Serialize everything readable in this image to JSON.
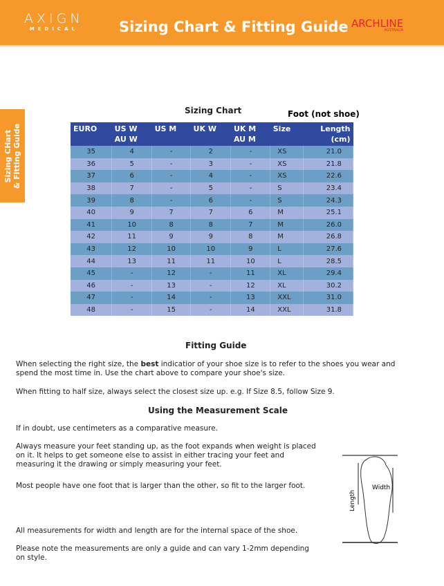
{
  "header": {
    "brand": "AXIGN",
    "brand_sub": "MEDICAL",
    "title": "Sizing Chart & Fitting Guide",
    "partner": "ARCHLINE",
    "partner_sub": "AUSTRALIA"
  },
  "side_tab": {
    "line1": "Sizing CHart",
    "line2": "& Fitting Guide"
  },
  "chart": {
    "title": "Sizing Chart",
    "note": "Foot (not shoe)",
    "headers": [
      "EURO",
      "US W\nAU W",
      "US M",
      "UK W",
      "UK M\nAU M",
      "Size",
      "Length\n(cm)"
    ],
    "rows": [
      [
        "35",
        "4",
        "-",
        "2",
        "-",
        "XS",
        "21.0"
      ],
      [
        "36",
        "5",
        "-",
        "3",
        "-",
        "XS",
        "21.8"
      ],
      [
        "37",
        "6",
        "-",
        "4",
        "-",
        "XS",
        "22.6"
      ],
      [
        "38",
        "7",
        "-",
        "5",
        "-",
        "S",
        "23.4"
      ],
      [
        "39",
        "8",
        "-",
        "6",
        "-",
        "S",
        "24.3"
      ],
      [
        "40",
        "9",
        "7",
        "7",
        "6",
        "M",
        "25.1"
      ],
      [
        "41",
        "10",
        "8",
        "8",
        "7",
        "M",
        "26.0"
      ],
      [
        "42",
        "11",
        "9",
        "9",
        "8",
        "M",
        "26.8"
      ],
      [
        "43",
        "12",
        "10",
        "10",
        "9",
        "L",
        "27.6"
      ],
      [
        "44",
        "13",
        "11",
        "11",
        "10",
        "L",
        "28.5"
      ],
      [
        "45",
        "-",
        "12",
        "-",
        "11",
        "XL",
        "29.4"
      ],
      [
        "46",
        "-",
        "13",
        "-",
        "12",
        "XL",
        "30.2"
      ],
      [
        "47",
        "-",
        "14",
        "-",
        "13",
        "XXL",
        "31.0"
      ],
      [
        "48",
        "-",
        "15",
        "-",
        "14",
        "XXL",
        "31.8"
      ]
    ]
  },
  "fitting": {
    "title": "Fitting Guide",
    "p1a": "When selecting the right size, the ",
    "p1b": "best",
    "p1c": " indicatior of your shoe size is to refer to the shoes you wear and spend the most time in. Use the chart above to compare your shoe's size.",
    "p2": "When fitting to half size, always select the closest size up. e.g. If Size 8.5, follow Size 9."
  },
  "measure": {
    "title": "Using the Measurement Scale",
    "p1": "If in doubt, use centimeters as a comparative measure.",
    "p2": "Always measure your feet standing up, as the foot expands when weight is placed on it. It helps to get someone else to assist in either tracing your feet and measuring it the drawing or simply measuring your feet.",
    "p3": "Most people have one foot that is larger than the other, so fit to the larger foot.",
    "p4": "All measurements for width and length are for the internal space of the shoe.",
    "p5": "Please note the measurements are only a guide and can vary 1-2mm depending on style."
  },
  "diagram": {
    "length_label": "Length",
    "width_label": "Width"
  }
}
